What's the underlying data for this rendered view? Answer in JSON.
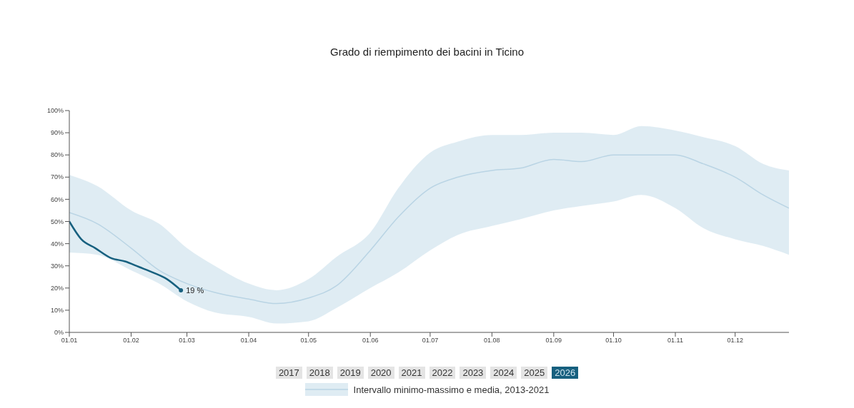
{
  "chart_data": {
    "type": "line",
    "title": "Grado di riempimento dei bacini in Ticino",
    "x": [
      "--01-01",
      "--01-15",
      "--02-01",
      "--02-15",
      "--03-01",
      "--03-15",
      "--04-01",
      "--04-15",
      "--05-01",
      "--05-15",
      "--06-01",
      "--06-15",
      "--07-01",
      "--07-15",
      "--08-01",
      "--08-15",
      "--09-01",
      "--09-15",
      "--10-01",
      "--10-15",
      "--11-01",
      "--11-15",
      "--12-01",
      "--12-15",
      "--12-28"
    ],
    "series": [
      {
        "name": "Intervallo minimo-massimo e media, 2013-2021",
        "color": "#b9d4e4",
        "values": [
          54,
          49,
          38,
          28,
          22,
          18,
          15,
          13,
          15.5,
          21,
          37,
          52,
          65,
          70,
          73,
          74,
          78,
          77,
          80,
          80,
          80,
          76,
          70,
          62,
          56
        ],
        "lower": [
          36,
          35,
          28,
          22,
          14,
          9,
          7,
          4,
          5,
          11,
          20,
          27,
          37,
          44,
          48,
          51,
          55,
          57,
          59,
          62,
          56,
          47,
          42,
          39,
          35
        ],
        "upper": [
          71,
          66,
          55,
          49,
          38,
          30,
          22,
          19,
          24,
          34,
          45,
          65,
          81,
          86,
          89,
          89,
          90,
          90,
          89,
          93,
          91,
          88,
          84,
          76,
          73
        ]
      },
      {
        "name": "2026",
        "color": "#17607f",
        "x": [
          "--01-01",
          "--01-07",
          "--01-14",
          "--01-22",
          "--01-29",
          "--02-05",
          "--02-12",
          "--02-19",
          "--02-26"
        ],
        "values": [
          50,
          42,
          38,
          33.5,
          32,
          29.5,
          27,
          24,
          19
        ],
        "value_labels": [
          null,
          null,
          null,
          null,
          null,
          null,
          null,
          null,
          "19 %"
        ]
      }
    ],
    "annotations": [
      "2017",
      "2018",
      "2019",
      "2020",
      "2021",
      "2022",
      "2023",
      "2024",
      "2025"
    ],
    "xlim": [
      "--01-01",
      "--12-28"
    ],
    "xticks": [
      {
        "value": "--01-01",
        "label": "01.01"
      },
      {
        "value": "--02-01",
        "label": "01.02"
      },
      {
        "value": "--03-01",
        "label": "01.03"
      },
      {
        "value": "--04-01",
        "label": "01.04"
      },
      {
        "value": "--05-01",
        "label": "01.05"
      },
      {
        "value": "--06-01",
        "label": "01.06"
      },
      {
        "value": "--07-01",
        "label": "01.07"
      },
      {
        "value": "--08-01",
        "label": "01.08"
      },
      {
        "value": "--09-01",
        "label": "01.09"
      },
      {
        "value": "--10-01",
        "label": "01.10"
      },
      {
        "value": "--11-01",
        "label": "01.11"
      },
      {
        "value": "--12-01",
        "label": "01.12"
      }
    ],
    "ylim": [
      0,
      100
    ],
    "yticks": [
      {
        "value": 0,
        "label": "0%"
      },
      {
        "value": 10,
        "label": "10%"
      },
      {
        "value": 20,
        "label": "20%"
      },
      {
        "value": 30,
        "label": "30%"
      },
      {
        "value": 40,
        "label": "40%"
      },
      {
        "value": 50,
        "label": "50%"
      },
      {
        "value": 60,
        "label": "60%"
      },
      {
        "value": 70,
        "label": "70%"
      },
      {
        "value": 80,
        "label": "80%"
      },
      {
        "value": 90,
        "label": "90%"
      },
      {
        "value": 100,
        "label": "100%"
      }
    ],
    "grid": false,
    "legend": "bottom"
  }
}
